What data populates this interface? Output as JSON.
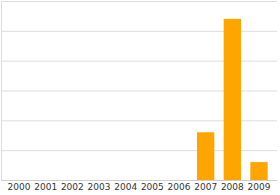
{
  "chart_data": {
    "type": "bar",
    "categories": [
      "2000",
      "2001",
      "2002",
      "2003",
      "2004",
      "2005",
      "2006",
      "2007",
      "2008",
      "2009"
    ],
    "values": [
      0,
      0,
      0,
      0,
      0,
      0,
      0,
      1.6,
      5.4,
      0.6
    ],
    "color": "#ffa500",
    "ylim": [
      0,
      6
    ],
    "yticks": [
      0,
      1,
      2,
      3,
      4,
      5,
      6
    ],
    "grid": true,
    "tick_labels": "x"
  }
}
